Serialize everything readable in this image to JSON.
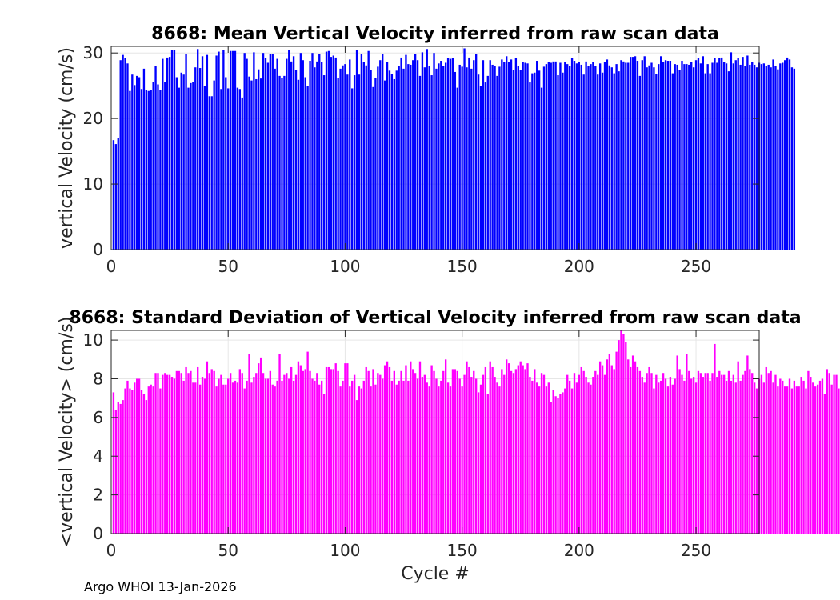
{
  "footer": "Argo WHOI 13-Jan-2026",
  "chart_data": [
    {
      "type": "bar",
      "title": "8668: Mean Vertical Velocity inferred from raw scan data",
      "xlabel": "",
      "ylabel": "vertical Velocity (cm/s)",
      "color": "#0000ff",
      "xlim": [
        0,
        277
      ],
      "ylim": [
        0,
        31
      ],
      "xticks": [
        0,
        50,
        100,
        150,
        200,
        250
      ],
      "yticks": [
        0,
        10,
        20,
        30
      ],
      "grid": true,
      "x_start": 1,
      "values": [
        16.7,
        16.1,
        17.0,
        28.9,
        29.7,
        29.2,
        28.4,
        24.2,
        26.7,
        25.1,
        26.5,
        26.3,
        24.5,
        27.6,
        24.3,
        24.2,
        24.4,
        25.6,
        28.0,
        25.2,
        24.4,
        29.1,
        25.6,
        29.3,
        29.4,
        30.4,
        30.5,
        26.3,
        24.7,
        27.0,
        26.7,
        29.8,
        24.7,
        25.4,
        25.6,
        27.8,
        30.6,
        27.7,
        29.5,
        24.9,
        29.7,
        23.4,
        23.4,
        25.8,
        29.6,
        30.2,
        24.5,
        30.4,
        26.3,
        24.6,
        30.3,
        30.3,
        30.3,
        24.7,
        24.5,
        23.2,
        30.0,
        29.1,
        26.4,
        25.8,
        30.1,
        26.0,
        27.5,
        26.1,
        30.0,
        29.2,
        28.5,
        29.9,
        29.9,
        27.6,
        29.1,
        26.5,
        26.2,
        26.5,
        29.1,
        30.4,
        28.7,
        29.5,
        27.4,
        25.9,
        30.0,
        28.9,
        26.3,
        24.9,
        28.8,
        30.0,
        27.8,
        28.7,
        29.8,
        28.6,
        26.6,
        30.2,
        30.3,
        29.4,
        29.6,
        29.3,
        26.2,
        27.6,
        28.1,
        28.3,
        26.7,
        29.0,
        24.6,
        26.6,
        30.4,
        26.7,
        29.8,
        28.6,
        28.1,
        30.3,
        27.4,
        24.8,
        26.2,
        27.9,
        28.9,
        29.9,
        25.8,
        28.6,
        27.3,
        26.8,
        26.0,
        27.3,
        28.0,
        29.3,
        27.6,
        29.7,
        28.3,
        28.2,
        28.9,
        29.8,
        28.9,
        26.5,
        30.1,
        27.8,
        30.6,
        28.0,
        26.6,
        30.0,
        27.6,
        28.4,
        28.8,
        28.0,
        28.5,
        29.2,
        29.1,
        29.2,
        27.1,
        24.7,
        28.2,
        27.9,
        30.7,
        27.8,
        29.3,
        27.6,
        28.9,
        29.9,
        26.7,
        25.0,
        28.9,
        25.5,
        26.5,
        28.9,
        28.2,
        28.0,
        26.5,
        27.9,
        29.0,
        28.6,
        29.5,
        28.6,
        29.0,
        27.4,
        29.2,
        28.0,
        27.4,
        28.6,
        28.5,
        28.4,
        25.5,
        26.9,
        27.0,
        28.8,
        27.3,
        24.7,
        27.9,
        28.3,
        28.6,
        28.5,
        28.7,
        28.7,
        26.6,
        28.5,
        27.0,
        28.6,
        28.3,
        28.0,
        29.2,
        28.8,
        28.4,
        28.6,
        28.2,
        26.7,
        28.7,
        28.0,
        28.3,
        28.6,
        28.0,
        26.7,
        28.4,
        27.0,
        28.6,
        29.0,
        28.1,
        27.8,
        26.9,
        28.3,
        27.2,
        28.9,
        28.7,
        28.5,
        28.5,
        29.4,
        29.4,
        29.5,
        28.8,
        26.5,
        28.9,
        29.5,
        27.8,
        28.1,
        28.5,
        27.8,
        26.8,
        28.3,
        29.5,
        28.6,
        28.9,
        28.8,
        28.8,
        26.9,
        28.3,
        28.2,
        27.4,
        28.8,
        28.3,
        28.3,
        28.2,
        28.6,
        27.8,
        28.9,
        29.2,
        28.4,
        29.5,
        26.9,
        28.3,
        26.9,
        28.5,
        29.2,
        28.5,
        29.2,
        29.3,
        28.6,
        28.4,
        27.2,
        30.1,
        28.4,
        28.9,
        29.2,
        28.2,
        29.4,
        28.0,
        29.6,
        28.2,
        28.6,
        28.2,
        27.8,
        28.5,
        28.3,
        28.4,
        28.0,
        28.2,
        27.8,
        29.0,
        28.0,
        27.5,
        28.4,
        28.5,
        28.9,
        29.3,
        29.0,
        27.8,
        27.6
      ]
    },
    {
      "type": "bar",
      "title": "8668: Standard Deviation of Vertical Velocity inferred from raw scan data",
      "xlabel": "Cycle #",
      "ylabel": "<vertical Velocity> (cm/s)",
      "color": "#ff00ff",
      "xlim": [
        0,
        277
      ],
      "ylim": [
        0,
        10.5
      ],
      "xticks": [
        0,
        50,
        100,
        150,
        200,
        250
      ],
      "yticks": [
        0,
        2,
        4,
        6,
        8,
        10
      ],
      "grid": true,
      "x_start": 1,
      "values": [
        7.3,
        6.4,
        6.8,
        6.7,
        6.9,
        7.5,
        7.9,
        7.5,
        7.4,
        7.8,
        8.0,
        8.0,
        7.4,
        7.2,
        6.9,
        7.6,
        7.7,
        7.6,
        8.3,
        8.3,
        7.5,
        8.2,
        8.3,
        8.2,
        8.2,
        8.1,
        8.0,
        8.4,
        8.4,
        8.3,
        7.9,
        8.6,
        8.3,
        8.4,
        7.8,
        7.8,
        8.6,
        7.7,
        8.1,
        8.0,
        8.9,
        8.3,
        8.5,
        8.4,
        7.6,
        8.0,
        8.2,
        7.7,
        7.7,
        8.0,
        8.3,
        7.8,
        7.9,
        7.8,
        8.5,
        8.3,
        7.5,
        7.9,
        9.3,
        7.8,
        8.1,
        8.3,
        8.8,
        9.1,
        8.3,
        8.0,
        8.0,
        8.4,
        7.7,
        7.6,
        7.9,
        9.3,
        7.9,
        8.2,
        8.3,
        8.0,
        8.6,
        7.9,
        8.2,
        8.9,
        8.7,
        8.4,
        8.5,
        9.4,
        8.4,
        8.0,
        7.9,
        8.3,
        7.7,
        7.9,
        7.2,
        8.6,
        8.6,
        8.5,
        8.5,
        8.8,
        8.4,
        7.6,
        7.9,
        8.8,
        8.8,
        7.6,
        7.9,
        8.2,
        6.9,
        7.6,
        7.5,
        7.9,
        8.6,
        8.4,
        7.6,
        8.5,
        7.7,
        8.3,
        8.2,
        8.0,
        8.7,
        8.9,
        8.6,
        7.9,
        8.4,
        7.7,
        7.9,
        8.4,
        7.9,
        8.7,
        7.9,
        8.9,
        8.5,
        8.3,
        8.0,
        8.9,
        8.1,
        8.2,
        7.8,
        7.6,
        8.7,
        8.4,
        8.0,
        7.6,
        7.9,
        8.4,
        9.0,
        7.8,
        7.6,
        8.5,
        8.5,
        8.4,
        8.0,
        7.6,
        8.2,
        8.9,
        8.6,
        8.1,
        8.4,
        8.0,
        7.3,
        7.7,
        8.2,
        8.6,
        7.2,
        8.9,
        8.6,
        8.1,
        7.8,
        7.6,
        8.5,
        8.2,
        9.0,
        8.8,
        8.4,
        8.3,
        8.5,
        8.7,
        8.9,
        8.7,
        8.5,
        8.8,
        8.1,
        7.9,
        8.5,
        7.8,
        7.6,
        8.3,
        8.2,
        7.6,
        7.8,
        6.8,
        7.4,
        7.1,
        7.0,
        7.2,
        7.3,
        7.5,
        8.2,
        7.9,
        7.5,
        8.3,
        7.8,
        8.2,
        8.6,
        8.4,
        8.1,
        7.8,
        7.7,
        8.1,
        8.4,
        8.2,
        8.9,
        8.7,
        8.2,
        9.0,
        9.3,
        8.7,
        8.5,
        9.4,
        10.0,
        10.5,
        10.3,
        9.9,
        9.0,
        8.6,
        9.2,
        8.9,
        8.6,
        8.4,
        8.1,
        7.8,
        8.3,
        8.6,
        8.3,
        7.5,
        8.2,
        7.8,
        7.9,
        8.3,
        8.0,
        7.6,
        8.1,
        7.7,
        8.0,
        9.2,
        8.5,
        8.2,
        7.9,
        9.3,
        8.4,
        8.0,
        8.1,
        7.8,
        8.4,
        8.3,
        8.1,
        8.3,
        8.3,
        7.9,
        8.3,
        9.8,
        8.1,
        8.4,
        8.2,
        8.2,
        7.9,
        8.4,
        7.9,
        8.2,
        7.8,
        8.9,
        7.9,
        8.2,
        8.4,
        9.2,
        8.5,
        8.3,
        7.8,
        7.5,
        8.0,
        8.2,
        7.8,
        8.6,
        8.3,
        8.4,
        7.8,
        8.2,
        7.6,
        8.0,
        7.9,
        7.6,
        7.6,
        8.0,
        7.5,
        7.9,
        7.6,
        7.6,
        8.1,
        7.9,
        7.5,
        8.4,
        8.1,
        7.8,
        7.6,
        7.7,
        7.9,
        8.0,
        7.2,
        8.5,
        8.3,
        7.7,
        8.2,
        8.2,
        7.5,
        8.0,
        8.3,
        7.7,
        7.6,
        8.0,
        7.8,
        8.3,
        7.3,
        7.8,
        7.9,
        8.3,
        7.7,
        8.2,
        8.0,
        7.6,
        8.2,
        7.8,
        8.3,
        7.6,
        7.5,
        7.4,
        7.7,
        8.1,
        8.4,
        7.8,
        8.4,
        7.6,
        7.4,
        8.2,
        8.3,
        8.2,
        7.9,
        8.2,
        7.7,
        8.6,
        7.8,
        6.7,
        6.9,
        7.2,
        7.4,
        7.3,
        7.0,
        7.5,
        6.6,
        7.0,
        6.6,
        6.6,
        6.7,
        7.4,
        7.1,
        6.6,
        7.3,
        7.6,
        7.2,
        6.3,
        7.7,
        8.3,
        7.0,
        7.2,
        7.5,
        8.0,
        7.3,
        8.5,
        8.0
      ]
    }
  ]
}
